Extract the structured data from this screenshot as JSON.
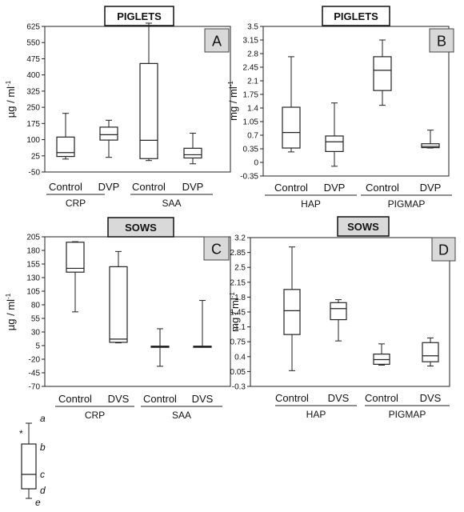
{
  "chart_data": [
    {
      "type": "boxplot",
      "panel_label": "A",
      "title": "PIGLETS",
      "ylabel": "µg / ml",
      "ylabel_superscript": "-1",
      "ylim": [
        -50,
        625
      ],
      "yticks": [
        "625",
        "550",
        "475",
        "400",
        "325",
        "250",
        "175",
        "100",
        "25",
        "-50"
      ],
      "groups": [
        {
          "label": "CRP",
          "categories": [
            "Control",
            "DVP"
          ]
        },
        {
          "label": "SAA",
          "categories": [
            "Control",
            "DVP"
          ]
        }
      ],
      "boxes": [
        {
          "name": "Control",
          "group": "CRP",
          "min": 10,
          "q1": 22,
          "median": 40,
          "q3": 112,
          "max": 222
        },
        {
          "name": "DVP",
          "group": "CRP",
          "min": 18,
          "q1": 98,
          "median": 123,
          "q3": 158,
          "max": 190
        },
        {
          "name": "Control",
          "group": "SAA",
          "min": 3,
          "q1": 12,
          "median": 97,
          "q3": 453,
          "max": 640
        },
        {
          "name": "DVP",
          "group": "SAA",
          "min": -12,
          "q1": 15,
          "median": 30,
          "q3": 60,
          "max": 130
        }
      ]
    },
    {
      "type": "boxplot",
      "panel_label": "B",
      "title": "PIGLETS",
      "ylabel": "mg / ml",
      "ylabel_superscript": "-1",
      "ylim": [
        -0.35,
        3.5
      ],
      "yticks": [
        "3.5",
        "3.15",
        "2.8",
        "2.45",
        "2.1",
        "1.75",
        "1.4",
        "1.05",
        "0.7",
        "0.35",
        "0",
        "-0.35"
      ],
      "groups": [
        {
          "label": "HAP",
          "categories": [
            "Control",
            "DVP"
          ]
        },
        {
          "label": "PIGMAP",
          "categories": [
            "Control",
            "DVP"
          ]
        }
      ],
      "boxes": [
        {
          "name": "Control",
          "group": "HAP",
          "min": 0.27,
          "q1": 0.37,
          "median": 0.77,
          "q3": 1.42,
          "max": 2.72
        },
        {
          "name": "DVP",
          "group": "HAP",
          "min": -0.1,
          "q1": 0.28,
          "median": 0.53,
          "q3": 0.68,
          "max": 1.53
        },
        {
          "name": "Control",
          "group": "PIGMAP",
          "min": 1.47,
          "q1": 1.85,
          "median": 2.37,
          "q3": 2.72,
          "max": 3.15
        },
        {
          "name": "DVP",
          "group": "PIGMAP",
          "min": 0.37,
          "q1": 0.38,
          "median": 0.41,
          "q3": 0.48,
          "max": 0.83
        }
      ]
    },
    {
      "type": "boxplot",
      "panel_label": "C",
      "title": "SOWS",
      "ylabel": "µg / ml",
      "ylabel_superscript": "-1",
      "ylim": [
        -70,
        205
      ],
      "yticks": [
        "205",
        "180",
        "155",
        "130",
        "105",
        "80",
        "55",
        "30",
        "5",
        "-20",
        "-45",
        "-70"
      ],
      "groups": [
        {
          "label": "CRP",
          "categories": [
            "Control",
            "DVS"
          ]
        },
        {
          "label": "SAA",
          "categories": [
            "Control",
            "DVS"
          ]
        }
      ],
      "boxes": [
        {
          "name": "Control",
          "group": "CRP",
          "min": 67,
          "q1": 140,
          "median": 147,
          "q3": 195,
          "max": 196
        },
        {
          "name": "DVS",
          "group": "CRP",
          "min": 10,
          "q1": 11,
          "median": 17,
          "q3": 150,
          "max": 178
        },
        {
          "name": "Control",
          "group": "SAA",
          "min": -33,
          "q1": 2,
          "median": 3,
          "q3": 4,
          "max": 36
        },
        {
          "name": "DVS",
          "group": "SAA",
          "min": 2,
          "q1": 2,
          "median": 3,
          "q3": 4,
          "max": 88
        }
      ]
    },
    {
      "type": "boxplot",
      "panel_label": "D",
      "title": "SOWS",
      "ylabel": "mg / ml",
      "ylabel_superscript": "-1",
      "ylim": [
        -0.3,
        3.2
      ],
      "yticks": [
        "3.2",
        "2.85",
        "2.5",
        "2.15",
        "1.8",
        "1.45",
        "1.1",
        "0.75",
        "0.4",
        "0.05",
        "-0.3"
      ],
      "groups": [
        {
          "label": "HAP",
          "categories": [
            "Control",
            "DVS"
          ]
        },
        {
          "label": "PIGMAP",
          "categories": [
            "Control",
            "DVS"
          ]
        }
      ],
      "boxes": [
        {
          "name": "Control",
          "group": "HAP",
          "min": 0.07,
          "q1": 0.92,
          "median": 1.48,
          "q3": 1.98,
          "max": 2.98
        },
        {
          "name": "DVS",
          "group": "HAP",
          "min": 0.77,
          "q1": 1.27,
          "median": 1.53,
          "q3": 1.67,
          "max": 1.74
        },
        {
          "name": "Control",
          "group": "PIGMAP",
          "min": 0.2,
          "q1": 0.22,
          "median": 0.33,
          "q3": 0.46,
          "max": 0.7
        },
        {
          "name": "DVS",
          "group": "PIGMAP",
          "min": 0.18,
          "q1": 0.28,
          "median": 0.42,
          "q3": 0.73,
          "max": 0.84
        }
      ]
    }
  ],
  "legend": {
    "outlier_marker": "*",
    "labels": [
      "a",
      "b",
      "c",
      "d",
      "e"
    ]
  }
}
